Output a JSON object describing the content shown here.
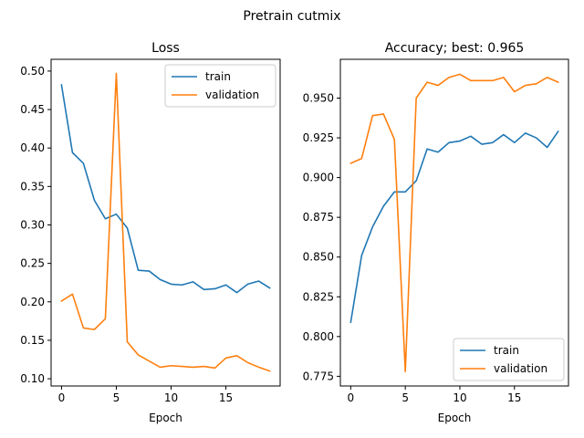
{
  "figure": {
    "suptitle": "Pretrain cutmix",
    "colors": {
      "train": "#1f77b4",
      "validation": "#ff7f0e"
    }
  },
  "chart_data": [
    {
      "type": "line",
      "title": "Loss",
      "xlabel": "Epoch",
      "ylabel": "",
      "xlim": [
        -0.95,
        19.95
      ],
      "ylim": [
        0.0906,
        0.5153
      ],
      "xticks": [
        0,
        5,
        10,
        15
      ],
      "yticks": [
        0.1,
        0.15,
        0.2,
        0.25,
        0.3,
        0.35,
        0.4,
        0.45,
        0.5
      ],
      "ytick_format": 2,
      "legend": "top-right",
      "x": [
        0,
        1,
        2,
        3,
        4,
        5,
        6,
        7,
        8,
        9,
        10,
        11,
        12,
        13,
        14,
        15,
        16,
        17,
        18,
        19
      ],
      "series": [
        {
          "name": "train",
          "color": "#1f77b4",
          "values": [
            0.482,
            0.394,
            0.38,
            0.332,
            0.308,
            0.314,
            0.296,
            0.241,
            0.24,
            0.229,
            0.223,
            0.222,
            0.226,
            0.216,
            0.217,
            0.222,
            0.212,
            0.223,
            0.227,
            0.218
          ]
        },
        {
          "name": "validation",
          "color": "#ff7f0e",
          "values": [
            0.201,
            0.21,
            0.166,
            0.164,
            0.178,
            0.497,
            0.148,
            0.131,
            0.123,
            0.115,
            0.117,
            0.116,
            0.115,
            0.116,
            0.114,
            0.127,
            0.13,
            0.121,
            0.115,
            0.11
          ]
        }
      ]
    },
    {
      "type": "line",
      "title": "Accuracy; best: 0.965",
      "xlabel": "Epoch",
      "ylabel": "",
      "xlim": [
        -0.95,
        19.95
      ],
      "ylim": [
        0.7689,
        0.9744
      ],
      "xticks": [
        0,
        5,
        10,
        15
      ],
      "yticks": [
        0.775,
        0.8,
        0.825,
        0.85,
        0.875,
        0.9,
        0.925,
        0.95
      ],
      "ytick_format": 3,
      "legend": "bottom-right",
      "x": [
        0,
        1,
        2,
        3,
        4,
        5,
        6,
        7,
        8,
        9,
        10,
        11,
        12,
        13,
        14,
        15,
        16,
        17,
        18,
        19
      ],
      "series": [
        {
          "name": "train",
          "color": "#1f77b4",
          "values": [
            0.809,
            0.851,
            0.869,
            0.882,
            0.891,
            0.891,
            0.898,
            0.918,
            0.916,
            0.922,
            0.923,
            0.926,
            0.921,
            0.922,
            0.927,
            0.922,
            0.928,
            0.925,
            0.919,
            0.929
          ]
        },
        {
          "name": "validation",
          "color": "#ff7f0e",
          "values": [
            0.909,
            0.912,
            0.939,
            0.94,
            0.924,
            0.778,
            0.95,
            0.96,
            0.958,
            0.963,
            0.965,
            0.961,
            0.961,
            0.961,
            0.963,
            0.954,
            0.958,
            0.959,
            0.963,
            0.96
          ]
        }
      ]
    }
  ]
}
